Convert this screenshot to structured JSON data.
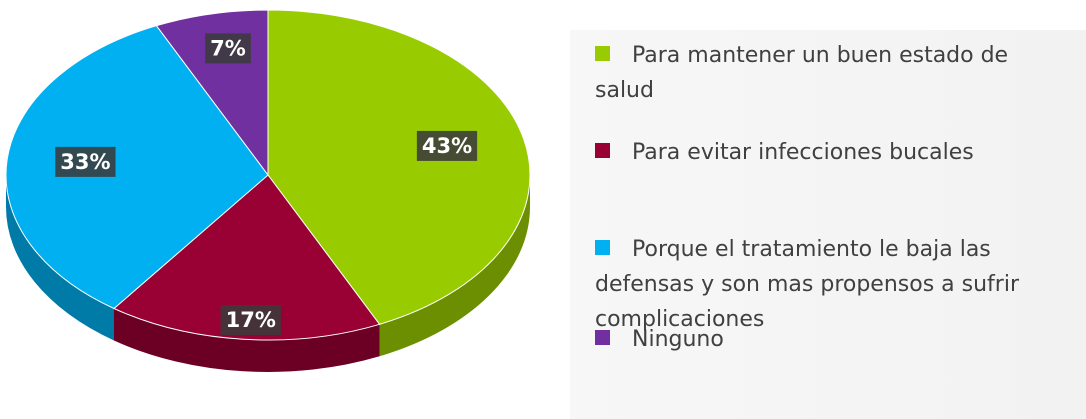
{
  "chart_data": {
    "type": "pie",
    "categories": [
      "Para mantener un buen estado de salud",
      "Para evitar infecciones bucales",
      "Porque el tratamiento le baja las defensas y son mas propensos a sufrir complicaciones",
      "Ninguno"
    ],
    "values": [
      43,
      17,
      33,
      7
    ],
    "value_labels": [
      "43%",
      "17%",
      "33%",
      "7%"
    ],
    "colors": [
      "#99cc00",
      "#990033",
      "#00b0f0",
      "#7030a0"
    ],
    "legend": "right"
  }
}
